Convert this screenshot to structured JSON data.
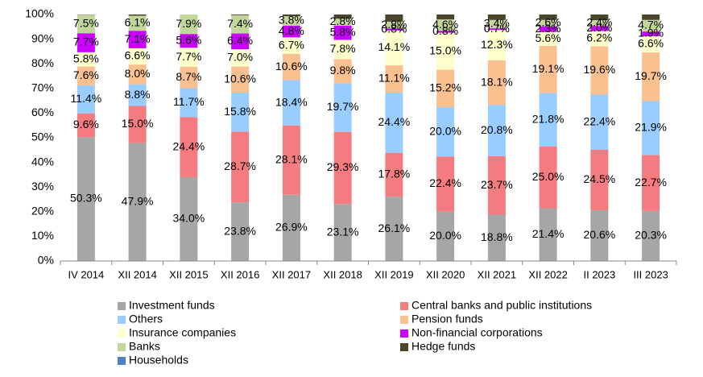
{
  "chart_data": {
    "type": "stacked_bar",
    "categories": [
      "IV 2014",
      "XII 2014",
      "XII 2015",
      "XII 2016",
      "XII 2017",
      "XII 2018",
      "XII 2019",
      "XII 2020",
      "XII 2021",
      "XII 2022",
      "II 2023",
      "III 2023"
    ],
    "ylim": [
      0,
      100
    ],
    "yticks": [
      {
        "value": 0,
        "label": "0%"
      },
      {
        "value": 10,
        "label": "10%"
      },
      {
        "value": 20,
        "label": "20%"
      },
      {
        "value": 30,
        "label": "30%"
      },
      {
        "value": 40,
        "label": "40%"
      },
      {
        "value": 50,
        "label": "50%"
      },
      {
        "value": 60,
        "label": "60%"
      },
      {
        "value": 70,
        "label": "70%"
      },
      {
        "value": 80,
        "label": "80%"
      },
      {
        "value": 90,
        "label": "90%"
      },
      {
        "value": 100,
        "label": "100%"
      }
    ],
    "grid": false,
    "legend": "bottom",
    "series": [
      {
        "name": "Investment funds",
        "color": "#a6a6a6",
        "values": [
          50.3,
          47.9,
          34.0,
          23.8,
          26.9,
          23.1,
          26.1,
          20.0,
          18.8,
          21.4,
          20.6,
          20.3
        ],
        "value_labels": [
          "50.3%",
          "47.9%",
          "34.0%",
          "23.8%",
          "26.9%",
          "23.1%",
          "26.1%",
          "20.0%",
          "18.8%",
          "21.4%",
          "20.6%",
          "20.3%"
        ]
      },
      {
        "name": "Central banks and public institutions",
        "color": "#f47c80",
        "values": [
          9.6,
          15.0,
          24.4,
          28.7,
          28.1,
          29.3,
          17.8,
          22.4,
          23.7,
          25.0,
          24.5,
          22.7
        ],
        "value_labels": [
          "9.6%",
          "15.0%",
          "24.4%",
          "28.7%",
          "28.1%",
          "29.3%",
          "17.8%",
          "22.4%",
          "23.7%",
          "25.0%",
          "24.5%",
          "22.7%"
        ]
      },
      {
        "name": "Others",
        "color": "#99ccff",
        "values": [
          11.4,
          8.8,
          11.7,
          15.8,
          18.4,
          19.7,
          24.4,
          20.0,
          20.8,
          21.8,
          22.4,
          21.9
        ],
        "value_labels": [
          "11.4%",
          "8.8%",
          "11.7%",
          "15.8%",
          "18.4%",
          "19.7%",
          "24.4%",
          "20.0%",
          "20.8%",
          "21.8%",
          "22.4%",
          "21.9%"
        ]
      },
      {
        "name": "Pension funds",
        "color": "#fac090",
        "values": [
          7.6,
          8.0,
          8.7,
          10.6,
          10.6,
          9.8,
          11.1,
          15.2,
          18.1,
          19.1,
          19.6,
          19.7
        ],
        "value_labels": [
          "7.6%",
          "8.0%",
          "8.7%",
          "10.6%",
          "10.6%",
          "9.8%",
          "11.1%",
          "15.2%",
          "18.1%",
          "19.1%",
          "19.6%",
          "19.7%"
        ]
      },
      {
        "name": "Insurance companies",
        "color": "#ffffcc",
        "values": [
          5.8,
          6.6,
          7.7,
          7.0,
          6.7,
          7.8,
          14.1,
          15.0,
          12.3,
          5.6,
          6.2,
          6.6
        ],
        "value_labels": [
          "5.8%",
          "6.6%",
          "7.7%",
          "7.0%",
          "6.7%",
          "7.8%",
          "14.1%",
          "15.0%",
          "12.3%",
          "5.6%",
          "6.2%",
          "6.6%"
        ]
      },
      {
        "name": "Non-financial corporations",
        "color": "#cc00ff",
        "values": [
          7.7,
          7.1,
          5.6,
          6.4,
          4.8,
          5.8,
          0.8,
          0.8,
          0.7,
          2.3,
          2.0,
          1.9
        ],
        "value_labels": [
          "7.7%",
          "7.1%",
          "5.6%",
          "6.4%",
          "4.8%",
          "5.8%",
          "0.8%",
          "0.8%",
          "0.7%",
          "2.3%",
          "2.0%",
          "1.9%"
        ]
      },
      {
        "name": "Banks",
        "color": "#c3d69b",
        "values": [
          7.5,
          6.1,
          7.9,
          7.4,
          3.8,
          2.8,
          2.8,
          4.6,
          3.4,
          2.6,
          2.4,
          4.7
        ],
        "value_labels": [
          "7.5%",
          "6.1%",
          "7.9%",
          "7.4%",
          "3.8%",
          "2.8%",
          "2.8%",
          "4.6%",
          "3.4%",
          "2.6%",
          "2.4%",
          "4.7%"
        ]
      },
      {
        "name": "Hedge funds",
        "color": "#4a452a",
        "values": [
          0.1,
          0.5,
          0,
          0.3,
          0.7,
          1.7,
          2.9,
          2.0,
          2.2,
          2.2,
          2.3,
          2.2
        ]
      },
      {
        "name": "Households",
        "color": "#4f81bd",
        "values": [
          0,
          0,
          0,
          0,
          0,
          0,
          0,
          0,
          0,
          0,
          0,
          0
        ]
      }
    ]
  }
}
